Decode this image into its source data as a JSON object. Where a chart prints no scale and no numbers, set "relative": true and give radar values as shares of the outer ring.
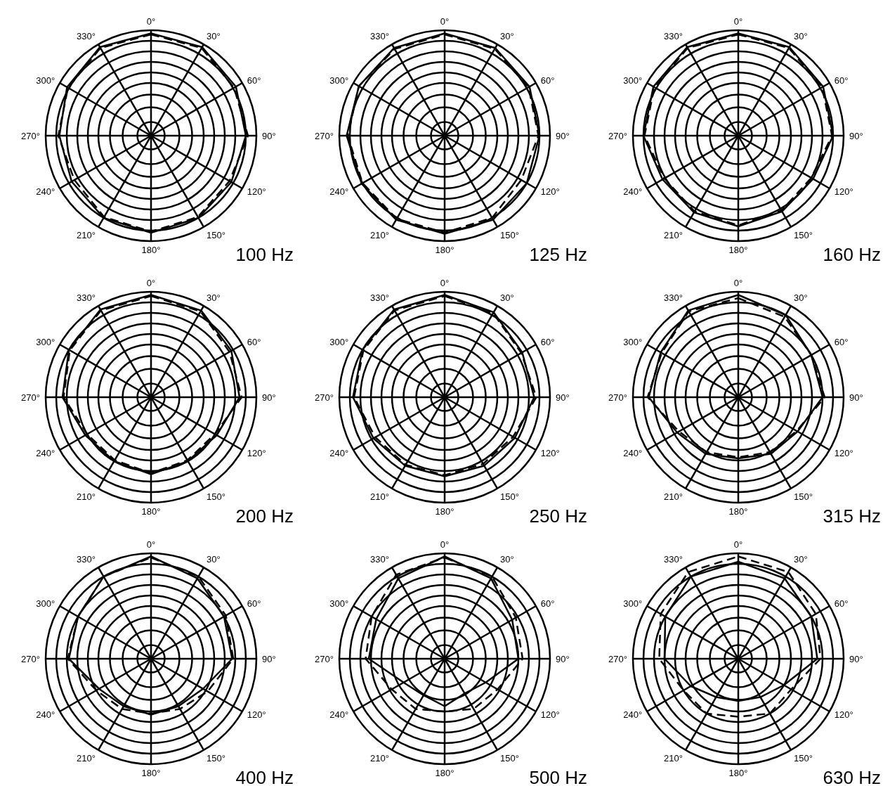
{
  "chart_data": [
    {
      "type": "radar",
      "title": "100 Hz",
      "relative": true,
      "grid": true,
      "categories": [
        "0°",
        "30°",
        "60°",
        "90°",
        "120°",
        "150°",
        "180°",
        "210°",
        "240°",
        "270°",
        "300°",
        "330°"
      ],
      "series": [
        {
          "color": "#000000",
          "line_style": "solid",
          "values": [
            0.97,
            0.97,
            0.93,
            0.9,
            0.88,
            0.9,
            0.92,
            0.9,
            0.87,
            0.87,
            0.92,
            0.97
          ]
        },
        {
          "color": "#000000",
          "line_style": "dashed",
          "values": [
            0.96,
            0.96,
            0.91,
            0.92,
            0.86,
            0.89,
            0.91,
            0.89,
            0.84,
            0.88,
            0.91,
            0.96
          ]
        }
      ]
    },
    {
      "type": "radar",
      "title": "125 Hz",
      "relative": true,
      "grid": true,
      "categories": [
        "0°",
        "30°",
        "60°",
        "90°",
        "120°",
        "150°",
        "180°",
        "210°",
        "240°",
        "270°",
        "300°",
        "330°"
      ],
      "series": [
        {
          "color": "#000000",
          "line_style": "solid",
          "values": [
            0.97,
            0.96,
            0.93,
            0.9,
            0.9,
            0.92,
            0.93,
            0.92,
            0.91,
            0.93,
            0.94,
            0.96
          ]
        },
        {
          "color": "#000000",
          "line_style": "dashed",
          "values": [
            0.96,
            0.95,
            0.92,
            0.89,
            0.84,
            0.9,
            0.92,
            0.91,
            0.9,
            0.92,
            0.94,
            0.95
          ]
        }
      ]
    },
    {
      "type": "radar",
      "title": "160 Hz",
      "relative": true,
      "grid": true,
      "categories": [
        "0°",
        "30°",
        "60°",
        "90°",
        "120°",
        "150°",
        "180°",
        "210°",
        "240°",
        "270°",
        "300°",
        "330°"
      ],
      "series": [
        {
          "color": "#000000",
          "line_style": "solid",
          "values": [
            0.97,
            0.97,
            0.93,
            0.9,
            0.82,
            0.83,
            0.86,
            0.84,
            0.83,
            0.9,
            0.93,
            0.97
          ]
        },
        {
          "color": "#000000",
          "line_style": "dashed",
          "values": [
            0.96,
            0.96,
            0.92,
            0.89,
            0.8,
            0.82,
            0.85,
            0.83,
            0.81,
            0.89,
            0.92,
            0.96
          ]
        }
      ]
    },
    {
      "type": "radar",
      "title": "200 Hz",
      "relative": true,
      "grid": true,
      "categories": [
        "0°",
        "30°",
        "60°",
        "90°",
        "120°",
        "150°",
        "180°",
        "210°",
        "240°",
        "270°",
        "300°",
        "330°"
      ],
      "series": [
        {
          "color": "#000000",
          "line_style": "solid",
          "values": [
            0.97,
            0.95,
            0.88,
            0.84,
            0.72,
            0.7,
            0.73,
            0.7,
            0.72,
            0.84,
            0.9,
            0.96
          ]
        },
        {
          "color": "#000000",
          "line_style": "dashed",
          "values": [
            0.96,
            0.94,
            0.86,
            0.86,
            0.7,
            0.69,
            0.72,
            0.69,
            0.7,
            0.83,
            0.89,
            0.95
          ]
        }
      ]
    },
    {
      "type": "radar",
      "title": "250 Hz",
      "relative": true,
      "grid": true,
      "categories": [
        "0°",
        "30°",
        "60°",
        "90°",
        "120°",
        "150°",
        "180°",
        "210°",
        "240°",
        "270°",
        "300°",
        "330°"
      ],
      "series": [
        {
          "color": "#000000",
          "line_style": "solid",
          "values": [
            0.97,
            0.93,
            0.85,
            0.85,
            0.77,
            0.75,
            0.75,
            0.75,
            0.78,
            0.87,
            0.9,
            0.96
          ]
        },
        {
          "color": "#000000",
          "line_style": "dashed",
          "values": [
            0.96,
            0.92,
            0.84,
            0.87,
            0.75,
            0.73,
            0.74,
            0.74,
            0.76,
            0.86,
            0.89,
            0.95
          ]
        }
      ]
    },
    {
      "type": "radar",
      "title": "315 Hz",
      "relative": true,
      "grid": true,
      "categories": [
        "0°",
        "30°",
        "60°",
        "90°",
        "120°",
        "150°",
        "180°",
        "210°",
        "240°",
        "270°",
        "300°",
        "330°"
      ],
      "series": [
        {
          "color": "#000000",
          "line_style": "solid",
          "values": [
            0.97,
            0.9,
            0.8,
            0.8,
            0.65,
            0.62,
            0.58,
            0.62,
            0.67,
            0.85,
            0.85,
            0.95
          ]
        },
        {
          "color": "#000000",
          "line_style": "dashed",
          "values": [
            0.94,
            0.88,
            0.8,
            0.82,
            0.64,
            0.6,
            0.57,
            0.6,
            0.65,
            0.86,
            0.84,
            0.94
          ]
        }
      ]
    },
    {
      "type": "radar",
      "title": "400 Hz",
      "relative": true,
      "grid": true,
      "categories": [
        "0°",
        "30°",
        "60°",
        "90°",
        "120°",
        "150°",
        "180°",
        "210°",
        "240°",
        "270°",
        "300°",
        "330°"
      ],
      "series": [
        {
          "color": "#000000",
          "line_style": "solid",
          "values": [
            0.97,
            0.88,
            0.8,
            0.77,
            0.57,
            0.52,
            0.53,
            0.52,
            0.57,
            0.78,
            0.8,
            0.9
          ]
        },
        {
          "color": "#000000",
          "line_style": "dashed",
          "values": [
            0.96,
            0.9,
            0.82,
            0.78,
            0.62,
            0.55,
            0.52,
            0.55,
            0.6,
            0.79,
            0.8,
            0.9
          ]
        }
      ]
    },
    {
      "type": "radar",
      "title": "500 Hz",
      "relative": true,
      "grid": true,
      "categories": [
        "0°",
        "30°",
        "60°",
        "90°",
        "120°",
        "150°",
        "180°",
        "210°",
        "240°",
        "270°",
        "300°",
        "330°"
      ],
      "series": [
        {
          "color": "#000000",
          "line_style": "solid",
          "values": [
            0.97,
            0.88,
            0.74,
            0.7,
            0.45,
            0.38,
            0.45,
            0.4,
            0.45,
            0.72,
            0.75,
            0.88
          ]
        },
        {
          "color": "#000000",
          "line_style": "dashed",
          "values": [
            0.96,
            0.9,
            0.78,
            0.74,
            0.58,
            0.55,
            0.5,
            0.55,
            0.58,
            0.75,
            0.8,
            0.92
          ]
        }
      ]
    },
    {
      "type": "radar",
      "title": "630 Hz",
      "relative": true,
      "grid": true,
      "categories": [
        "0°",
        "30°",
        "60°",
        "90°",
        "120°",
        "150°",
        "180°",
        "210°",
        "240°",
        "270°",
        "300°",
        "330°"
      ],
      "series": [
        {
          "color": "#000000",
          "line_style": "solid",
          "values": [
            0.92,
            0.88,
            0.8,
            0.75,
            0.5,
            0.42,
            0.4,
            0.42,
            0.52,
            0.7,
            0.8,
            0.9
          ]
        },
        {
          "color": "#000000",
          "line_style": "dashed",
          "values": [
            0.97,
            0.95,
            0.85,
            0.78,
            0.58,
            0.6,
            0.55,
            0.6,
            0.6,
            0.75,
            0.85,
            0.95
          ]
        }
      ]
    }
  ]
}
